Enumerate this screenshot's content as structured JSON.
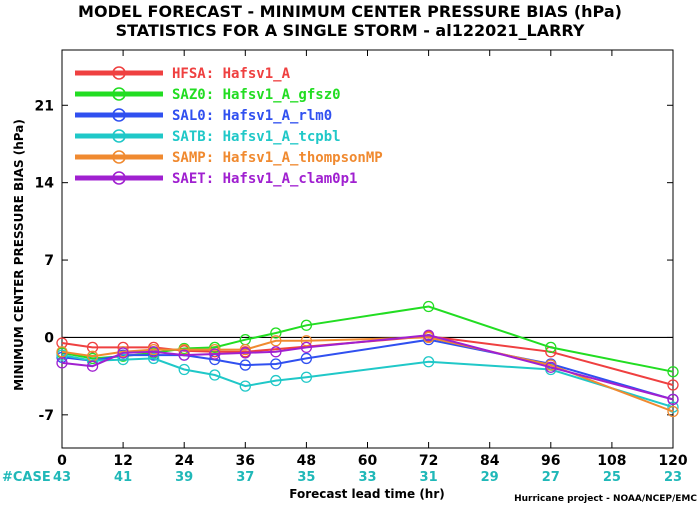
{
  "chart_data": {
    "type": "line",
    "title": "MODEL FORECAST - MINIMUM CENTER PRESSURE BIAS (hPa)",
    "subtitle": "STATISTICS FOR A SINGLE STORM - al122021_LARRY",
    "xlabel": "Forecast lead time (hr)",
    "ylabel": "MINIMUM CENTER PRESSURE BIAS (hPa)",
    "xlim": [
      0,
      120
    ],
    "ylim": [
      -10,
      26
    ],
    "x_ticks": [
      0,
      12,
      24,
      36,
      48,
      60,
      72,
      84,
      96,
      108,
      120
    ],
    "y_ticks": [
      -7,
      0,
      7,
      14,
      21
    ],
    "case_label": "#CASE",
    "case_counts": [
      "43",
      "41",
      "39",
      "37",
      "35",
      "33",
      "31",
      "29",
      "27",
      "25",
      "23"
    ],
    "credit": "Hurricane project - NOAA/NCEP/EMC",
    "legend_position": "top-left",
    "series": [
      {
        "name": "HFSA:  Hafsv1_A",
        "color": "#ef4040",
        "x": [
          0,
          6,
          12,
          18,
          24,
          30,
          36,
          72,
          96,
          120
        ],
        "y": [
          -0.5,
          -0.9,
          -0.9,
          -0.9,
          -1.2,
          -1.3,
          -1.3,
          0.1,
          -1.3,
          -4.3
        ]
      },
      {
        "name": "SAZ0:  Hafsv1_A_gfsz0",
        "color": "#22dd22",
        "x": [
          0,
          6,
          12,
          18,
          24,
          30,
          36,
          42,
          48,
          72,
          96,
          120
        ],
        "y": [
          -1.4,
          -1.9,
          -1.7,
          -1.4,
          -1.0,
          -0.9,
          -0.2,
          0.4,
          1.1,
          2.8,
          -0.9,
          -3.1
        ]
      },
      {
        "name": "SAL0:  Hafsv1_A_rlm0",
        "color": "#3050f0",
        "x": [
          0,
          6,
          12,
          18,
          24,
          30,
          36,
          42,
          48,
          72,
          96,
          120
        ],
        "y": [
          -1.8,
          -2.1,
          -1.6,
          -1.6,
          -1.6,
          -2.0,
          -2.5,
          -2.4,
          -1.9,
          -0.2,
          -2.4,
          -5.6
        ]
      },
      {
        "name": "SATB:  Hafsv1_A_tcpbl",
        "color": "#20c8c8",
        "x": [
          0,
          6,
          12,
          18,
          24,
          30,
          36,
          42,
          48,
          72,
          96,
          120
        ],
        "y": [
          -1.6,
          -2.1,
          -2.0,
          -1.9,
          -2.9,
          -3.4,
          -4.4,
          -3.9,
          -3.6,
          -2.2,
          -2.9,
          -6.3
        ]
      },
      {
        "name": "SAMP:  Hafsv1_A_thompsonMP",
        "color": "#f08a30",
        "x": [
          0,
          6,
          12,
          18,
          24,
          30,
          36,
          42,
          48,
          72,
          96,
          120
        ],
        "y": [
          -1.3,
          -1.7,
          -1.3,
          -1.1,
          -1.1,
          -1.1,
          -1.1,
          -0.3,
          -0.3,
          0.0,
          -2.5,
          -6.7
        ]
      },
      {
        "name": "SAET:  Hafsv1_A_clam0p1",
        "color": "#a020d0",
        "x": [
          0,
          6,
          12,
          18,
          24,
          30,
          36,
          42,
          48,
          72,
          96,
          120
        ],
        "y": [
          -2.3,
          -2.6,
          -1.4,
          -1.3,
          -1.6,
          -1.5,
          -1.4,
          -1.3,
          -0.9,
          0.2,
          -2.7,
          -5.6
        ]
      }
    ]
  }
}
